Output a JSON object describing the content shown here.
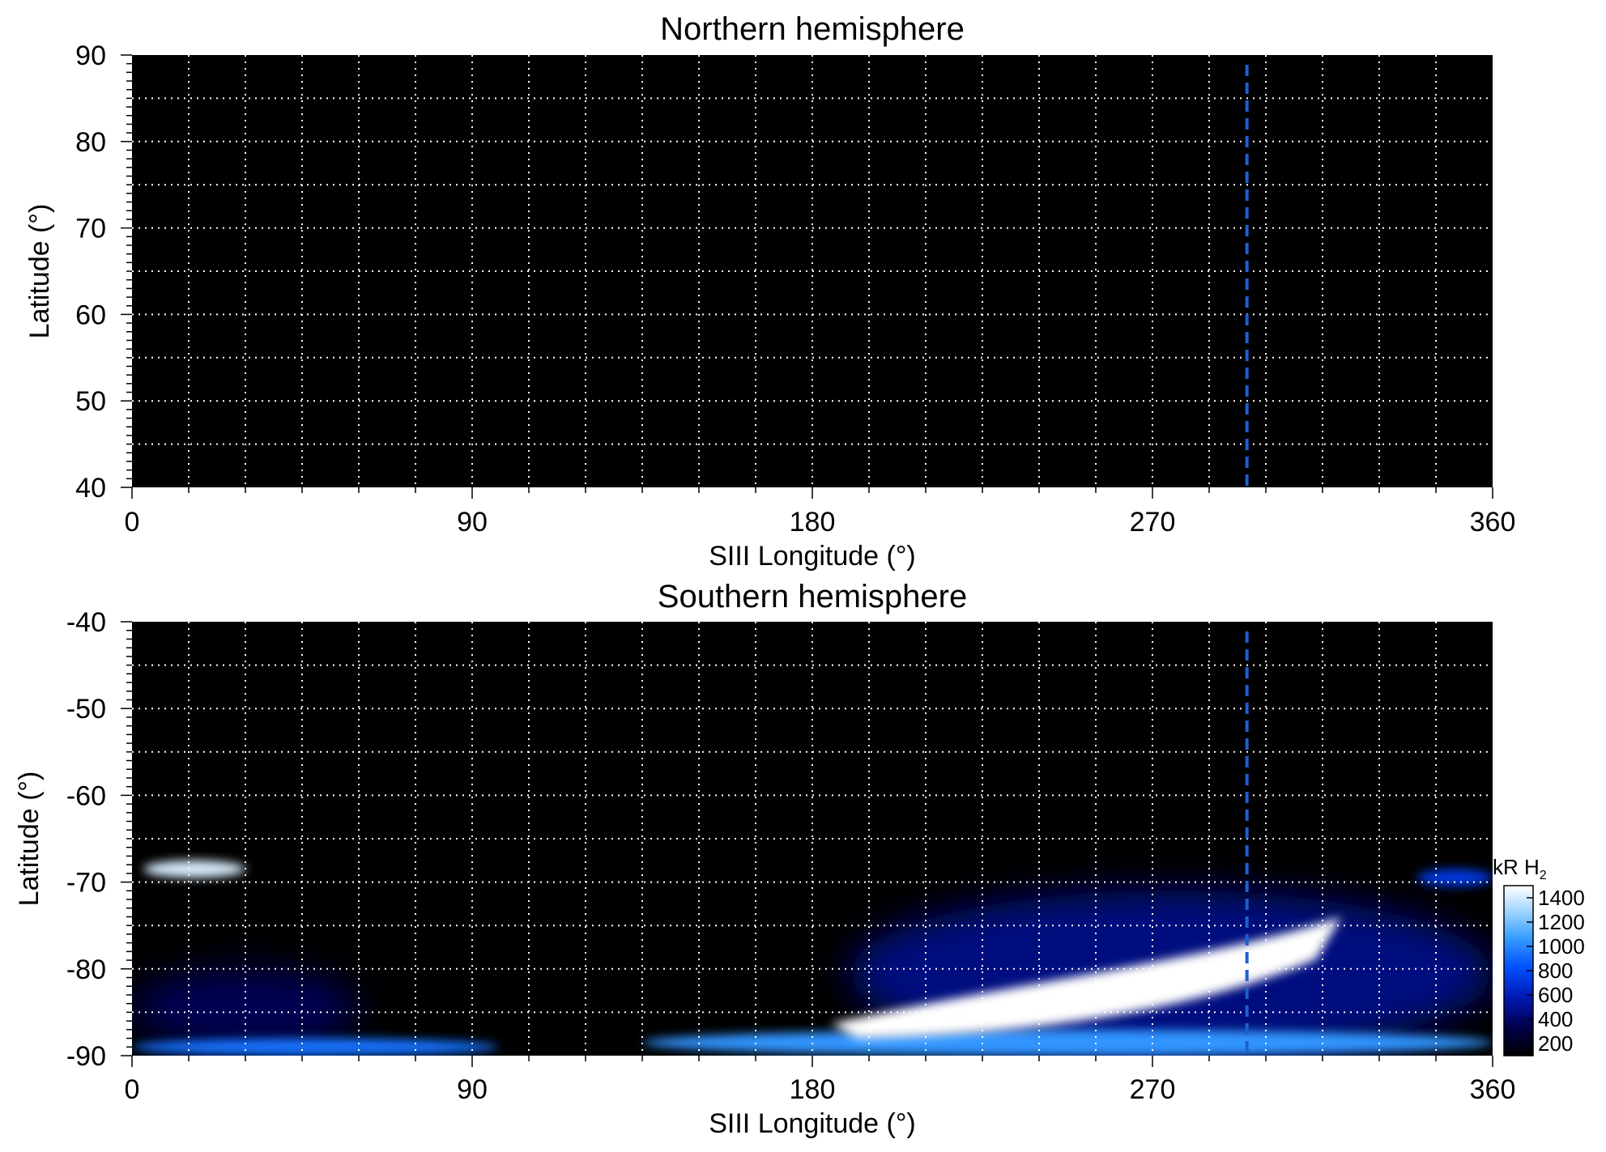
{
  "chart_data": [
    {
      "type": "heatmap",
      "title": "Northern hemisphere",
      "xlabel": "SIII Longitude (°)",
      "ylabel": "Latitude (°)",
      "xlim": [
        0,
        360
      ],
      "ylim": [
        40,
        90
      ],
      "xticks": [
        "0",
        "90",
        "180",
        "270",
        "360"
      ],
      "yticks": [
        "40",
        "50",
        "60",
        "70",
        "80",
        "90"
      ],
      "grid": true,
      "grid_x_step": 15,
      "grid_y_step": 5,
      "marker_line_longitude": 295,
      "marker_line_color": "#1f5fd0",
      "background": "#000000",
      "emission": []
    },
    {
      "type": "heatmap",
      "title": "Southern hemisphere",
      "xlabel": "SIII Longitude (°)",
      "ylabel": "Latitude (°)",
      "xlim": [
        0,
        360
      ],
      "ylim": [
        -90,
        -40
      ],
      "xticks": [
        "0",
        "90",
        "180",
        "270",
        "360"
      ],
      "yticks": [
        "-40",
        "-50",
        "-60",
        "-70",
        "-80",
        "-90"
      ],
      "grid": true,
      "grid_x_step": 15,
      "grid_y_step": 5,
      "marker_line_longitude": 295,
      "marker_line_color": "#1f5fd0",
      "background": "#000000",
      "emission": [
        {
          "region": "oval-patch-left",
          "lon": [
            3,
            30
          ],
          "lat": [
            -69.5,
            -67.5
          ],
          "intensity": 1400
        },
        {
          "region": "diffuse-band-left",
          "lon": [
            0,
            60
          ],
          "lat": [
            -89,
            -80
          ],
          "intensity": 350
        },
        {
          "region": "limb-streak-left",
          "lon": [
            0,
            97
          ],
          "lat": [
            -90,
            -88
          ],
          "intensity": 900
        },
        {
          "region": "limb-streak-mid",
          "lon": [
            135,
            360
          ],
          "lat": [
            -90,
            -87
          ],
          "intensity": 1000
        },
        {
          "region": "main-oval-bright",
          "lon": [
            185,
            320
          ],
          "lat": [
            -88,
            -74
          ],
          "intensity": 1500
        },
        {
          "region": "diffuse-halo-right",
          "lon": [
            190,
            360
          ],
          "lat": [
            -90,
            -71
          ],
          "intensity": 450
        },
        {
          "region": "patch-right",
          "lon": [
            340,
            360
          ],
          "lat": [
            -70.5,
            -68.5
          ],
          "intensity": 700
        }
      ]
    }
  ],
  "colorbar": {
    "title": "kR H",
    "subscript": "2",
    "ticks": [
      "200",
      "400",
      "600",
      "800",
      "1000",
      "1200",
      "1400"
    ],
    "tick_values": [
      200,
      400,
      600,
      800,
      1000,
      1200,
      1400
    ],
    "range": [
      100,
      1500
    ],
    "colors": [
      "#000000",
      "#00004a",
      "#0018b4",
      "#0050ff",
      "#3aa0ff",
      "#a8d8ff",
      "#ffffff"
    ]
  }
}
